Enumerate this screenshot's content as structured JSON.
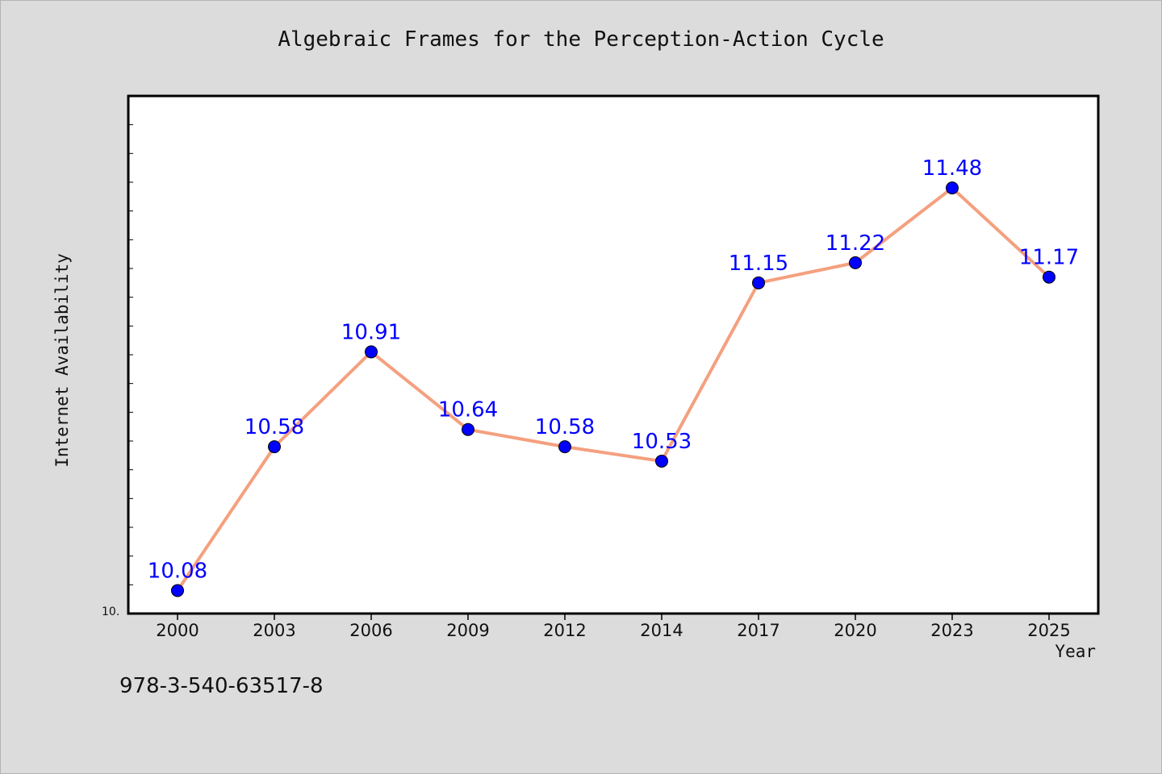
{
  "chart_data": {
    "type": "line",
    "title": "Algebraic Frames for the Perception-Action Cycle",
    "xlabel": "Year",
    "ylabel": "Internet Availability",
    "categories": [
      "2000",
      "2003",
      "2006",
      "2009",
      "2012",
      "2014",
      "2017",
      "2020",
      "2023",
      "2025"
    ],
    "series": [
      {
        "values": [
          10.08,
          10.58,
          10.91,
          10.64,
          10.58,
          10.53,
          11.15,
          11.22,
          11.48,
          11.17
        ],
        "data_labels": [
          "10.08",
          "10.58",
          "10.91",
          "10.64",
          "10.58",
          "10.53",
          "11.15",
          "11.22",
          "11.48",
          "11.17"
        ],
        "line_color": "#f4a07f",
        "marker_color": "#0000ff"
      }
    ],
    "ylim": [
      10.0,
      11.8
    ],
    "y_tick_label": "10.",
    "grid": false,
    "legend": "none",
    "plot_background": "#ffffff",
    "figure_background": "#dcdcdc",
    "data_label_color": "#0000ff"
  },
  "footer_text": "978-3-540-63517-8"
}
